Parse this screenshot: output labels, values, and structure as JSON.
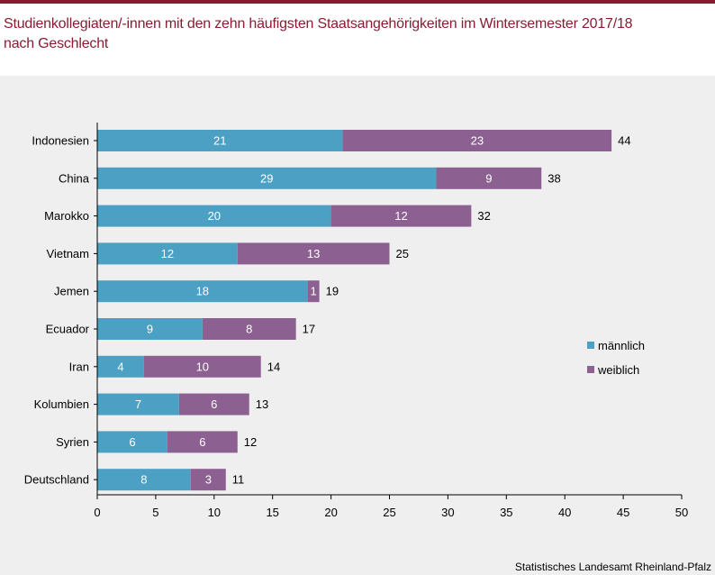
{
  "title_line1": "Studienkollegiaten/-innen mit den zehn häufigsten Staatsangehörigkeiten im Wintersemester 2017/18",
  "title_line2": "nach Geschlecht",
  "source": "Statistisches Landesamt Rheinland-Pfalz",
  "colors": {
    "accent": "#8a1c32",
    "maennlich": "#4ba0c3",
    "weiblich": "#8c6191",
    "panel": "#efefef"
  },
  "chart_data": {
    "type": "bar",
    "orientation": "horizontal",
    "stacked": true,
    "categories": [
      "Indonesien",
      "China",
      "Marokko",
      "Vietnam",
      "Jemen",
      "Ecuador",
      "Iran",
      "Kolumbien",
      "Syrien",
      "Deutschland"
    ],
    "series": [
      {
        "name": "männlich",
        "color": "#4ba0c3",
        "values": [
          21,
          29,
          20,
          12,
          18,
          9,
          4,
          7,
          6,
          8
        ]
      },
      {
        "name": "weiblich",
        "color": "#8c6191",
        "values": [
          23,
          9,
          12,
          13,
          1,
          8,
          10,
          6,
          6,
          3
        ]
      }
    ],
    "totals": [
      44,
      38,
      32,
      25,
      19,
      17,
      14,
      13,
      12,
      11
    ],
    "xlim": [
      0,
      50
    ],
    "xticks": [
      0,
      5,
      10,
      15,
      20,
      25,
      30,
      35,
      40,
      45,
      50
    ],
    "legend": "right",
    "grid": false
  }
}
